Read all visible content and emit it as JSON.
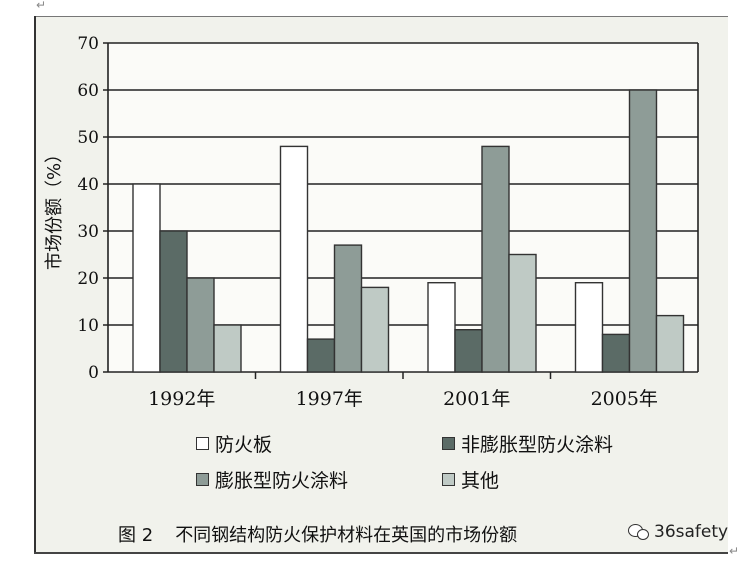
{
  "chart_data": {
    "type": "bar",
    "ylabel": "市场份额（%）",
    "ylim": [
      0,
      70
    ],
    "yticks": [
      0,
      10,
      20,
      30,
      40,
      50,
      60,
      70
    ],
    "grid": true,
    "legend_position": "bottom",
    "categories": [
      "1992年",
      "1997年",
      "2001年",
      "2005年"
    ],
    "series": [
      {
        "name": "防火板",
        "values": [
          40,
          48,
          19,
          19
        ],
        "color": "#ffffff"
      },
      {
        "name": "非膨胀型防火涂料",
        "values": [
          30,
          7,
          9,
          8
        ],
        "color": "#5b6b66"
      },
      {
        "name": "膨胀型防火涂料",
        "values": [
          20,
          27,
          48,
          60
        ],
        "color": "#8e9c97"
      },
      {
        "name": "其他",
        "values": [
          10,
          18,
          25,
          12
        ],
        "color": "#bfcac5"
      }
    ]
  },
  "caption": {
    "label": "图 2",
    "text": "不同钢结构防火保护材料在英国的市场份额"
  },
  "watermark": {
    "text": "36safety"
  },
  "marks": {
    "return_symbol": "↵"
  }
}
